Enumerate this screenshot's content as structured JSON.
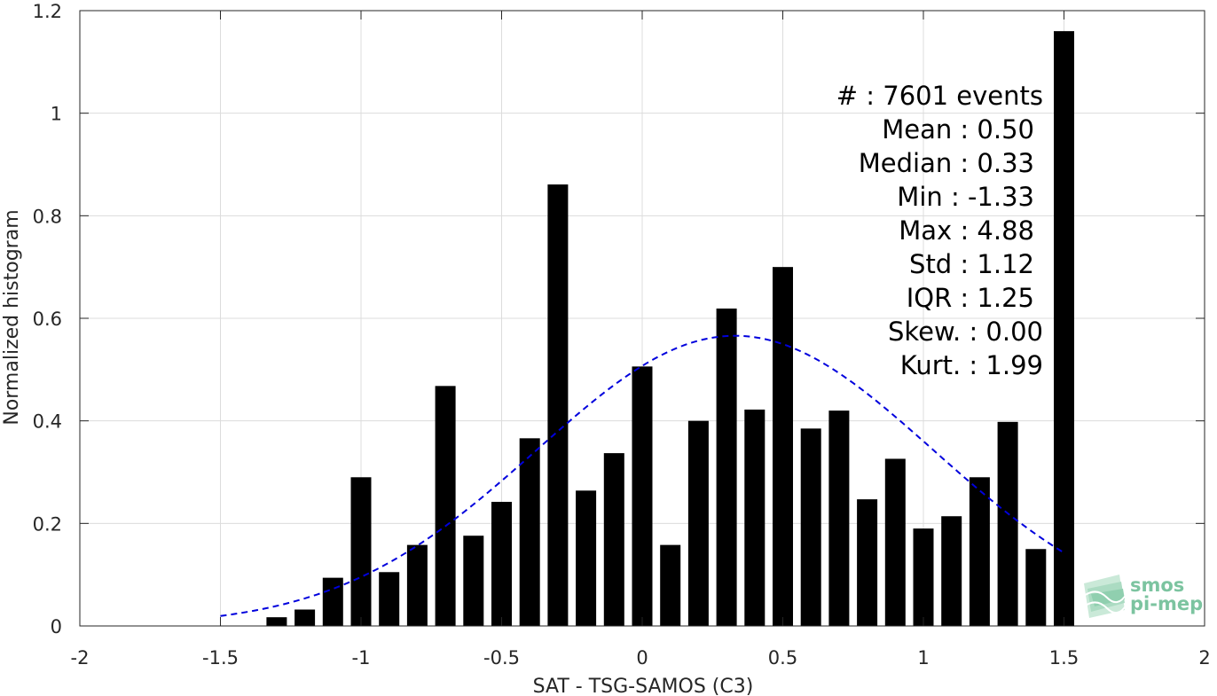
{
  "chart_data": {
    "type": "bar",
    "xlabel": "SAT - TSG-SAMOS (C3)",
    "ylabel": "Normalized histogram",
    "xlim": [
      -2,
      2
    ],
    "ylim": [
      0,
      1.2
    ],
    "xticks": [
      -2,
      -1.5,
      -1,
      -0.5,
      0,
      0.5,
      1,
      1.5,
      2
    ],
    "xtick_labels": [
      "-2",
      "-1.5",
      "-1",
      "-0.5",
      "0",
      "0.5",
      "1",
      "1.5",
      "2"
    ],
    "yticks": [
      0,
      0.2,
      0.4,
      0.6,
      0.8,
      1,
      1.2
    ],
    "ytick_labels": [
      "0",
      "0.2",
      "0.4",
      "0.6",
      "0.8",
      "1",
      "1.2"
    ],
    "grid": true,
    "bar_color": "#000000",
    "bars": {
      "x": [
        -1.3,
        -1.2,
        -1.1,
        -1.0,
        -0.9,
        -0.8,
        -0.7,
        -0.6,
        -0.5,
        -0.4,
        -0.3,
        -0.2,
        -0.1,
        0.0,
        0.1,
        0.2,
        0.3,
        0.4,
        0.5,
        0.6,
        0.7,
        0.8,
        0.9,
        1.0,
        1.1,
        1.2,
        1.3,
        1.4,
        1.5
      ],
      "values": [
        0.017,
        0.032,
        0.094,
        0.29,
        0.105,
        0.158,
        0.468,
        0.176,
        0.242,
        0.366,
        0.861,
        0.264,
        0.337,
        0.506,
        0.158,
        0.4,
        0.619,
        0.422,
        0.7,
        0.385,
        0.42,
        0.247,
        0.326,
        0.19,
        0.214,
        0.29,
        0.398,
        0.15,
        1.16
      ]
    },
    "fit_curve": {
      "type": "normal",
      "color": "#0000dd",
      "style": "dashed",
      "x_start": -1.5,
      "x_end": 1.5,
      "mean": 0.33,
      "std": 0.705
    },
    "stats": [
      "#  : 7601 events",
      "Mean : 0.50",
      "Median : 0.33",
      "Min : -1.33",
      "Max : 4.88",
      "Std : 1.12",
      "IQR : 1.25",
      "Skew. : 0.00",
      "Kurt. : 1.99"
    ]
  },
  "watermark": {
    "line1": "smos",
    "line2": "pi-mep",
    "color": "#7cc4a0"
  }
}
